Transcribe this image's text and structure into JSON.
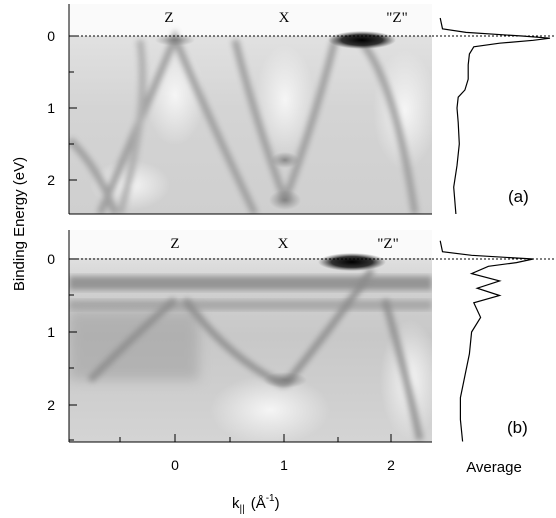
{
  "figure": {
    "y_axis_label": "Binding Energy (eV)",
    "x_axis_label": "k|| (Å-1)",
    "x_axis_label_parts": {
      "k": "k",
      "sub": "||",
      "open": "(Å",
      "sup": "-1",
      "close": ")"
    },
    "average_label": "Average",
    "panels": [
      {
        "id": "a",
        "tag": "(a)",
        "symmetry_points": [
          "Z",
          "X",
          "\"Z\""
        ]
      },
      {
        "id": "b",
        "tag": "(b)",
        "symmetry_points": [
          "Z",
          "X",
          "\"Z\""
        ]
      }
    ]
  },
  "chart_data": [
    {
      "type": "heatmap",
      "panel": "(a)",
      "xlabel": "k|| (Å-1)",
      "ylabel": "Binding Energy (eV)",
      "xlim": [
        -0.9,
        2.35
      ],
      "ylim": [
        2.5,
        -0.25
      ],
      "x_ticks": [
        0,
        1,
        2
      ],
      "y_ticks": [
        0,
        1,
        2
      ],
      "symmetry_points": [
        {
          "label": "Z",
          "k": 0
        },
        {
          "label": "X",
          "k": 1
        },
        {
          "label": "\"Z\"",
          "k": 2
        }
      ],
      "fermi_level": 0,
      "average_profile": {
        "label": "Average",
        "energy": [
          -0.25,
          -0.1,
          -0.05,
          0.0,
          0.03,
          0.06,
          0.1,
          0.15,
          0.25,
          0.4,
          0.6,
          0.75,
          0.85,
          1.0,
          1.2,
          1.5,
          1.8,
          2.1,
          2.5
        ],
        "intensity": [
          0.02,
          0.04,
          0.25,
          0.75,
          1.0,
          0.85,
          0.55,
          0.32,
          0.28,
          0.27,
          0.27,
          0.24,
          0.18,
          0.17,
          0.18,
          0.19,
          0.17,
          0.14,
          0.16
        ]
      }
    },
    {
      "type": "heatmap",
      "panel": "(b)",
      "xlabel": "k|| (Å-1)",
      "ylabel": "Binding Energy (eV)",
      "xlim": [
        -0.9,
        2.35
      ],
      "ylim": [
        2.5,
        -0.25
      ],
      "x_ticks": [
        0,
        1,
        2
      ],
      "y_ticks": [
        0,
        1,
        2
      ],
      "symmetry_points": [
        {
          "label": "Z",
          "k": 0
        },
        {
          "label": "X",
          "k": 1
        },
        {
          "label": "\"Z\"",
          "k": 2
        }
      ],
      "fermi_level": 0,
      "average_profile": {
        "label": "Average",
        "energy": [
          -0.25,
          -0.1,
          -0.05,
          0.0,
          0.05,
          0.1,
          0.2,
          0.3,
          0.4,
          0.5,
          0.6,
          0.8,
          1.0,
          1.3,
          1.6,
          1.9,
          2.2,
          2.5
        ],
        "intensity": [
          0.02,
          0.04,
          0.3,
          0.85,
          0.7,
          0.45,
          0.3,
          0.55,
          0.35,
          0.55,
          0.32,
          0.38,
          0.3,
          0.28,
          0.24,
          0.2,
          0.2,
          0.22
        ]
      }
    }
  ]
}
